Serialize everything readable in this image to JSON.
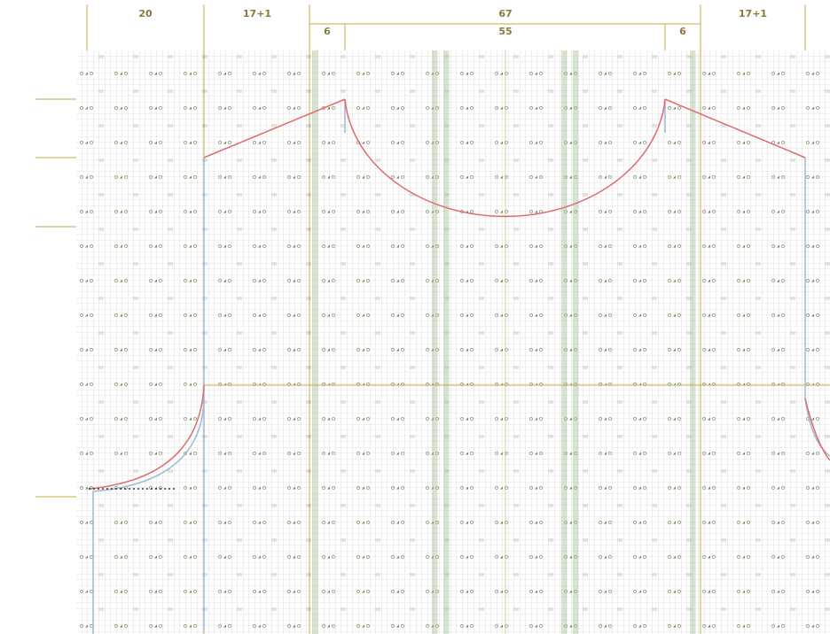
{
  "header": {
    "sections": [
      "20",
      "17+1",
      "67",
      "17+1"
    ],
    "subsections": [
      "6",
      "55",
      "6"
    ]
  }
}
